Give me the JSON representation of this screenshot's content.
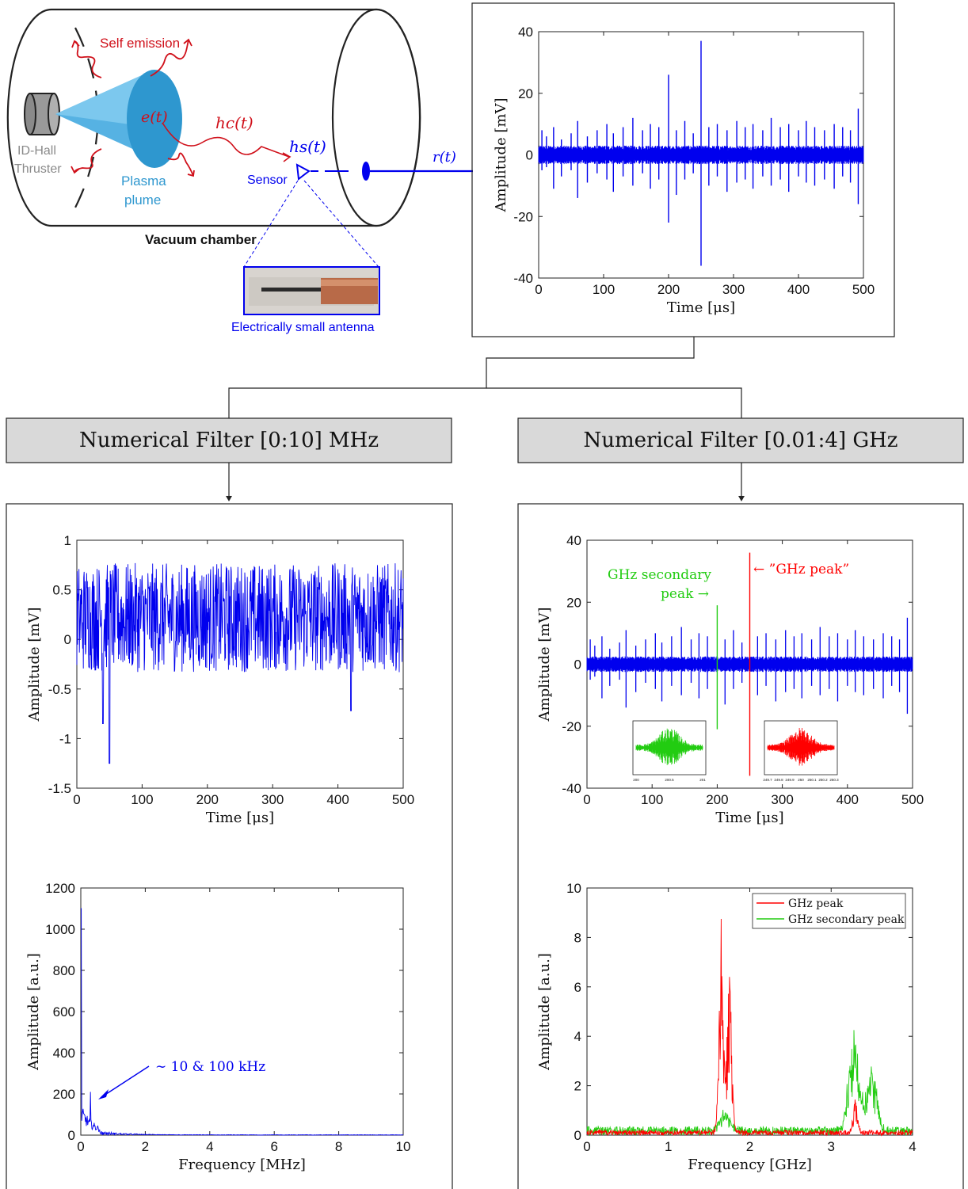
{
  "colors": {
    "signal_blue": "#0000ee",
    "emission_red": "#d0101a",
    "plume_blue": "#2e97cf",
    "secondary_green": "#22cc11",
    "peak_red": "#ff0000",
    "filter_box": "#d9d9d9",
    "thruster_gray": "#9a9a9a"
  },
  "schematic": {
    "self_emission": "Self emission",
    "thruster_line1": "ID-Hall",
    "thruster_line2": "Thruster",
    "plasma_line1": "Plasma",
    "plasma_line2": "plume",
    "e_t": "e(t)",
    "hc_t": "hc(t)",
    "hs_t": "hs(t)",
    "sensor": "Sensor",
    "r_t": "r(t)",
    "vacuum_chamber": "Vacuum chamber",
    "antenna_caption": "Electrically small antenna"
  },
  "filters": {
    "left": "Numerical Filter [0:10] MHz",
    "right": "Numerical Filter [0.01:4] GHz"
  },
  "chart_data": [
    {
      "id": "raw",
      "type": "line",
      "xlabel": "Time [μs]",
      "ylabel": "Amplitude [mV]",
      "xlim": [
        0,
        500
      ],
      "ylim": [
        -40,
        40
      ],
      "xticks": [
        0,
        100,
        200,
        300,
        400,
        500
      ],
      "yticks": [
        -40,
        -20,
        0,
        20,
        40
      ],
      "noise_band_mV": 3,
      "spikes": [
        {
          "x": 5,
          "top": 8,
          "bottom": -5
        },
        {
          "x": 12,
          "top": 6,
          "bottom": -4
        },
        {
          "x": 23,
          "top": 9,
          "bottom": -11
        },
        {
          "x": 35,
          "top": 5,
          "bottom": -7
        },
        {
          "x": 50,
          "top": 7,
          "bottom": -5
        },
        {
          "x": 60,
          "top": 11,
          "bottom": -14
        },
        {
          "x": 75,
          "top": 6,
          "bottom": -9
        },
        {
          "x": 90,
          "top": 8,
          "bottom": -6
        },
        {
          "x": 105,
          "top": 10,
          "bottom": -8
        },
        {
          "x": 115,
          "top": 7,
          "bottom": -12
        },
        {
          "x": 130,
          "top": 9,
          "bottom": -7
        },
        {
          "x": 145,
          "top": 12,
          "bottom": -10
        },
        {
          "x": 160,
          "top": 8,
          "bottom": -6
        },
        {
          "x": 172,
          "top": 10,
          "bottom": -11
        },
        {
          "x": 185,
          "top": 9,
          "bottom": -8
        },
        {
          "x": 200,
          "top": 26,
          "bottom": -22
        },
        {
          "x": 212,
          "top": 8,
          "bottom": -13
        },
        {
          "x": 225,
          "top": 11,
          "bottom": -8
        },
        {
          "x": 238,
          "top": 7,
          "bottom": -6
        },
        {
          "x": 250,
          "top": 37,
          "bottom": -36
        },
        {
          "x": 262,
          "top": 9,
          "bottom": -10
        },
        {
          "x": 275,
          "top": 10,
          "bottom": -7
        },
        {
          "x": 290,
          "top": 8,
          "bottom": -12
        },
        {
          "x": 305,
          "top": 11,
          "bottom": -9
        },
        {
          "x": 318,
          "top": 9,
          "bottom": -8
        },
        {
          "x": 330,
          "top": 10,
          "bottom": -11
        },
        {
          "x": 345,
          "top": 8,
          "bottom": -7
        },
        {
          "x": 358,
          "top": 12,
          "bottom": -10
        },
        {
          "x": 372,
          "top": 9,
          "bottom": -8
        },
        {
          "x": 385,
          "top": 10,
          "bottom": -12
        },
        {
          "x": 400,
          "top": 8,
          "bottom": -7
        },
        {
          "x": 412,
          "top": 11,
          "bottom": -9
        },
        {
          "x": 425,
          "top": 9,
          "bottom": -10
        },
        {
          "x": 440,
          "top": 8,
          "bottom": -8
        },
        {
          "x": 455,
          "top": 10,
          "bottom": -11
        },
        {
          "x": 468,
          "top": 9,
          "bottom": -7
        },
        {
          "x": 480,
          "top": 8,
          "bottom": -9
        },
        {
          "x": 492,
          "top": 15,
          "bottom": -16
        }
      ]
    },
    {
      "id": "mhz_time",
      "type": "line",
      "xlabel": "Time [μs]",
      "ylabel": "Amplitude [mV]",
      "xlim": [
        0,
        500
      ],
      "ylim": [
        -1.5,
        1
      ],
      "xticks": [
        0,
        100,
        200,
        300,
        400,
        500
      ],
      "yticks": [
        -1.5,
        -1,
        -0.5,
        0,
        0.5,
        1
      ],
      "ytick_labels": [
        "-1.5",
        "-1",
        "-0.5",
        "0",
        "0.5",
        "1"
      ],
      "notable_points": [
        {
          "x": 40,
          "y": -0.85
        },
        {
          "x": 50,
          "y": -1.25
        },
        {
          "x": 420,
          "y": -0.72
        }
      ]
    },
    {
      "id": "mhz_freq",
      "type": "line",
      "xlabel": "Frequency [MHz]",
      "ylabel": "Amplitude [a.u.]",
      "xlim": [
        0,
        10
      ],
      "ylim": [
        0,
        1200
      ],
      "xticks": [
        0,
        2,
        4,
        6,
        8,
        10
      ],
      "yticks": [
        0,
        200,
        400,
        600,
        800,
        1000,
        1200
      ],
      "peak_dc": 1100,
      "peak_low": 210,
      "annotation": "∼ 10 & 100 kHz"
    },
    {
      "id": "ghz_time",
      "type": "line",
      "xlabel": "Time [μs]",
      "ylabel": "Amplitude [mV]",
      "xlim": [
        0,
        500
      ],
      "ylim": [
        -40,
        40
      ],
      "xticks": [
        0,
        100,
        200,
        300,
        400,
        500
      ],
      "yticks": [
        -40,
        -20,
        0,
        20,
        40
      ],
      "secondary_peak_x": 200,
      "secondary_peak_range": [
        -21,
        19
      ],
      "main_peak_x": 250,
      "main_peak_range": [
        -36,
        36
      ],
      "secondary_label_line1": "GHz secondary",
      "secondary_label_line2": "peak →",
      "peak_label": "← ”GHz peak”",
      "inset_left_ticks": [
        "200",
        "200.5",
        "201"
      ],
      "inset_right_ticks": [
        "249.7",
        "249.8",
        "249.9",
        "250",
        "250.1",
        "250.2",
        "250.3"
      ]
    },
    {
      "id": "ghz_freq",
      "type": "line",
      "xlabel": "Frequency [GHz]",
      "ylabel": "Amplitude [a.u.]",
      "xlim": [
        0,
        4
      ],
      "ylim": [
        0,
        10
      ],
      "xticks": [
        0,
        1,
        2,
        3,
        4
      ],
      "yticks": [
        0,
        2,
        4,
        6,
        8,
        10
      ],
      "series": [
        {
          "name": "GHz peak",
          "peaks": [
            {
              "x": 1.65,
              "y": 8.75
            },
            {
              "x": 1.75,
              "y": 6.4
            },
            {
              "x": 3.3,
              "y": 1.3
            }
          ]
        },
        {
          "name": "GHz secondary peak",
          "peaks": [
            {
              "x": 3.28,
              "y": 4.25
            },
            {
              "x": 3.5,
              "y": 2.5
            },
            {
              "x": 1.7,
              "y": 0.9
            }
          ]
        }
      ]
    }
  ]
}
